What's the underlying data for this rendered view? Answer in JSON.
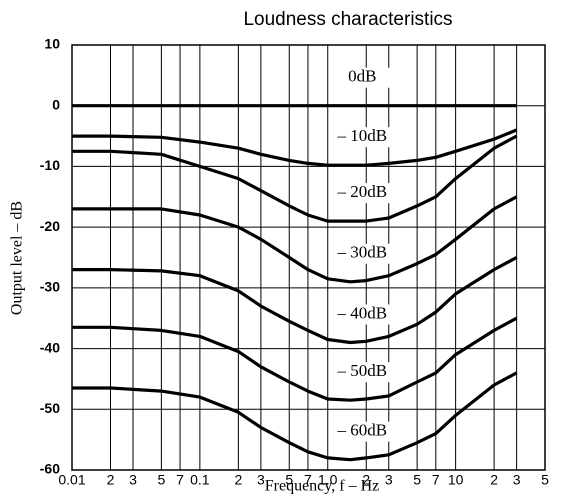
{
  "chart_data": {
    "type": "line",
    "title": "Loudness characteristics",
    "x_label": "Frequency, f – Hz",
    "y_label": "Output level – dB",
    "x_scale": "log",
    "grid": true,
    "color": "#000000",
    "xlim": [
      0.01,
      50
    ],
    "ylim": [
      -60,
      10
    ],
    "xticks": [
      0.01,
      {
        "value": 0.02,
        "label": "2"
      },
      {
        "value": 0.03,
        "label": "3"
      },
      {
        "value": 0.05,
        "label": "5"
      },
      {
        "value": 0.07,
        "label": "7"
      },
      0.1,
      {
        "value": 0.2,
        "label": "2"
      },
      {
        "value": 0.3,
        "label": "3"
      },
      {
        "value": 0.5,
        "label": "5"
      },
      {
        "value": 0.7,
        "label": "7"
      },
      {
        "value": 1,
        "label": "1.0"
      },
      {
        "value": 2,
        "label": "2"
      },
      {
        "value": 3,
        "label": "3"
      },
      {
        "value": 5,
        "label": "5"
      },
      {
        "value": 7,
        "label": "7"
      },
      10,
      {
        "value": 20,
        "label": "2"
      },
      {
        "value": 30,
        "label": "3"
      },
      {
        "value": 50,
        "label": "5"
      }
    ],
    "yticks": [
      -60,
      -50,
      -40,
      -30,
      -20,
      -10,
      0,
      10
    ],
    "x": [
      0.01,
      0.02,
      0.05,
      0.1,
      0.2,
      0.3,
      0.5,
      0.7,
      1,
      1.5,
      2,
      3,
      5,
      7,
      10,
      20,
      30
    ],
    "series": [
      {
        "name": "0dB",
        "values": [
          0,
          0,
          0,
          0,
          0,
          0,
          0,
          0,
          0,
          0,
          0,
          0,
          0,
          0,
          0,
          0,
          0
        ]
      },
      {
        "name": "– 10dB",
        "values": [
          -5,
          -5,
          -5.2,
          -6,
          -7,
          -8,
          -9,
          -9.5,
          -9.8,
          -9.8,
          -9.8,
          -9.5,
          -9,
          -8.5,
          -7.5,
          -5.5,
          -4
        ]
      },
      {
        "name": "– 20dB",
        "values": [
          -7.5,
          -7.5,
          -8,
          -10,
          -12,
          -14,
          -16.5,
          -18,
          -19,
          -19,
          -19,
          -18.5,
          -16.5,
          -15,
          -12,
          -7,
          -5
        ]
      },
      {
        "name": "– 30dB",
        "values": [
          -17,
          -17,
          -17,
          -18,
          -20,
          -22,
          -25,
          -27,
          -28.5,
          -29,
          -28.8,
          -28,
          -26,
          -24.5,
          -22,
          -17,
          -15
        ]
      },
      {
        "name": "– 40dB",
        "values": [
          -27,
          -27,
          -27.2,
          -28,
          -30.5,
          -33,
          -35.5,
          -37,
          -38.5,
          -39,
          -38.8,
          -38,
          -36,
          -34,
          -31,
          -27,
          -25
        ]
      },
      {
        "name": "– 50dB",
        "values": [
          -36.5,
          -36.5,
          -37,
          -38,
          -40.5,
          -43,
          -45.5,
          -47,
          -48.3,
          -48.5,
          -48.3,
          -47.8,
          -45.5,
          -44,
          -41,
          -37,
          -35
        ]
      },
      {
        "name": "– 60dB",
        "values": [
          -46.5,
          -46.5,
          -47,
          -48,
          -50.5,
          -53,
          -55.5,
          -57,
          -58,
          -58.3,
          -58,
          -57.5,
          -55.5,
          -54,
          -51,
          -46,
          -44
        ]
      }
    ]
  }
}
